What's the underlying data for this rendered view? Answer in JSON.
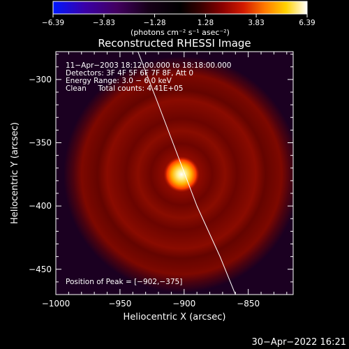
{
  "chart_data": {
    "type": "heatmap",
    "title": "Reconstructed RHESSI Image",
    "xlabel": "Heliocentric X (arcsec)",
    "ylabel": "Heliocentric Y (arcsec)",
    "xlim": [
      -1000,
      -815
    ],
    "ylim": [
      -470,
      -278
    ],
    "x_ticks": [
      -1000,
      -950,
      -900,
      -850
    ],
    "x_tick_labels": [
      "−1000",
      "−950",
      "−900",
      "−850"
    ],
    "y_ticks": [
      -300,
      -350,
      -400,
      -450
    ],
    "y_tick_labels": [
      "−300",
      "−350",
      "−400",
      "−450"
    ],
    "colorbar": {
      "range": [
        -6.39,
        6.39
      ],
      "ticks": [
        -6.39,
        -3.83,
        -1.28,
        1.28,
        3.83,
        6.39
      ],
      "tick_labels": [
        "−6.39",
        "−3.83",
        "−1.28",
        "1.28",
        "3.83",
        "6.39"
      ],
      "colors_negative": [
        "#0018ff",
        "#3a00a8",
        "#420060",
        "#160018"
      ],
      "colors_positive": [
        "#000000",
        "#3a0000",
        "#8a0000",
        "#d21a00",
        "#ff7a00",
        "#ffd200",
        "#ffffff"
      ]
    },
    "peak": {
      "x": -902,
      "y": -375
    },
    "source_model": {
      "outer_radius_arcsec": 92,
      "ring_radii_arcsec": [
        34,
        58,
        78
      ]
    },
    "limb_curve": [
      [
        -936,
        -278
      ],
      [
        -920,
        -320
      ],
      [
        -905,
        -360
      ],
      [
        -890,
        -400
      ],
      [
        -872,
        -440
      ],
      [
        -860,
        -470
      ]
    ],
    "info_lines": [
      "11−Apr−2003 18:12:00.000 to 18:18:00.000",
      "Detectors: 3F 4F 5F 6F 7F 8F, Att 0",
      "Energy Range: 3.0 − 6.0 keV",
      "Clean     Total counts: 4.41E+05"
    ],
    "peak_text": "Position of Peak = [−902,−375]"
  },
  "colorbar_units": "(photons cm⁻² s⁻¹ asec⁻²)",
  "timestamp": "30−Apr−2022 16:21"
}
